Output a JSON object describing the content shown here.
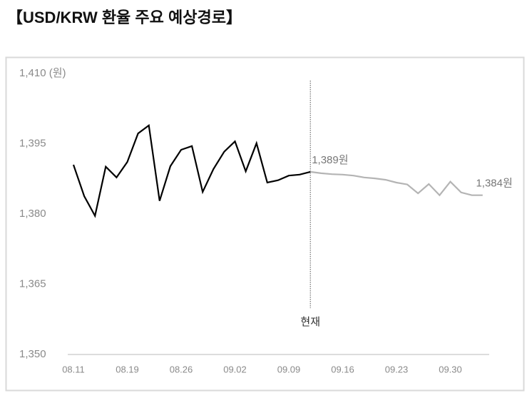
{
  "chart_data": {
    "type": "line",
    "title": "【USD/KRW 환율 주요 예상경로】",
    "categories": [
      "08.11",
      null,
      null,
      null,
      null,
      "08.19",
      null,
      null,
      null,
      null,
      "08.26",
      null,
      null,
      null,
      null,
      "09.02",
      null,
      null,
      null,
      null,
      "09.09",
      null,
      null,
      null,
      null,
      "09.16",
      null,
      null,
      null,
      null,
      "09.23",
      null,
      null,
      null,
      null,
      "09.30",
      null,
      null,
      null
    ],
    "series": [
      {
        "color": "#000000",
        "values": [
          1390.5,
          1383.8,
          1379.6,
          1390.1,
          1387.8,
          1391.1,
          1397.2,
          1398.9,
          1382.8,
          1390.2,
          1393.7,
          1394.5,
          1384.7,
          1389.6,
          1393.3,
          1395.5,
          1389.1,
          1395.1,
          1386.7,
          1387.2,
          1388.2,
          1388.4,
          1389.0,
          null,
          null,
          null,
          null,
          null,
          null,
          null,
          null,
          null,
          null,
          null,
          null,
          null,
          null,
          null,
          null
        ]
      },
      {
        "color": "#b4b4b4",
        "values": [
          null,
          null,
          null,
          null,
          null,
          null,
          null,
          null,
          null,
          null,
          null,
          null,
          null,
          null,
          null,
          null,
          null,
          null,
          null,
          null,
          null,
          null,
          1389.0,
          1388.7,
          1388.5,
          1388.4,
          1388.2,
          1387.8,
          1387.6,
          1387.3,
          1386.7,
          1386.3,
          1384.4,
          1386.4,
          1384.0,
          1386.9,
          1384.6,
          1384.0,
          1384.0
        ],
        "value_labels": [
          null,
          null,
          null,
          null,
          null,
          null,
          null,
          null,
          null,
          null,
          null,
          null,
          null,
          null,
          null,
          null,
          null,
          null,
          null,
          null,
          null,
          null,
          "1,389원",
          null,
          null,
          null,
          null,
          null,
          null,
          null,
          null,
          null,
          null,
          null,
          null,
          null,
          null,
          null,
          "1,384원"
        ]
      }
    ],
    "ylim": [
      1350,
      1410
    ],
    "yticks": [
      {
        "value": 1350,
        "label": "1,350"
      },
      {
        "value": 1365,
        "label": "1,365"
      },
      {
        "value": 1380,
        "label": "1,380"
      },
      {
        "value": 1395,
        "label": "1,395"
      },
      {
        "value": 1410,
        "label": "1,410 (원)"
      }
    ],
    "grid": false,
    "marker_line": {
      "label": "현재",
      "index": 22
    }
  }
}
